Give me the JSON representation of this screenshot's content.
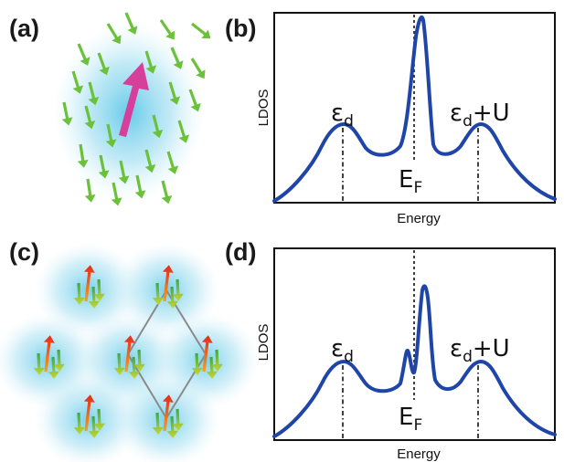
{
  "panels": {
    "a": {
      "label": "(a)"
    },
    "b": {
      "label": "(b)",
      "ylabel": "LDOS",
      "xlabel": "Energy",
      "peak_left_base": "ε",
      "peak_left_sub": "d",
      "peak_right_base": "ε",
      "peak_right_sub": "d",
      "peak_right_suffix": "+U",
      "fermi_base": "E",
      "fermi_sub": "F"
    },
    "c": {
      "label": "(c)"
    },
    "d": {
      "label": "(d)",
      "ylabel": "LDOS",
      "xlabel": "Energy",
      "peak_left_base": "ε",
      "peak_left_sub": "d",
      "peak_right_base": "ε",
      "peak_right_sub": "d",
      "peak_right_suffix": "+U",
      "fermi_base": "E",
      "fermi_sub": "F"
    }
  },
  "colors": {
    "curve": "#1f45a8",
    "cloud": "#5ec8e8",
    "small_arrow": "#6cc13a",
    "big_arrow": "#d6409a",
    "red_arrow": "#e8301a",
    "lattice": "#8a8a8a"
  }
}
